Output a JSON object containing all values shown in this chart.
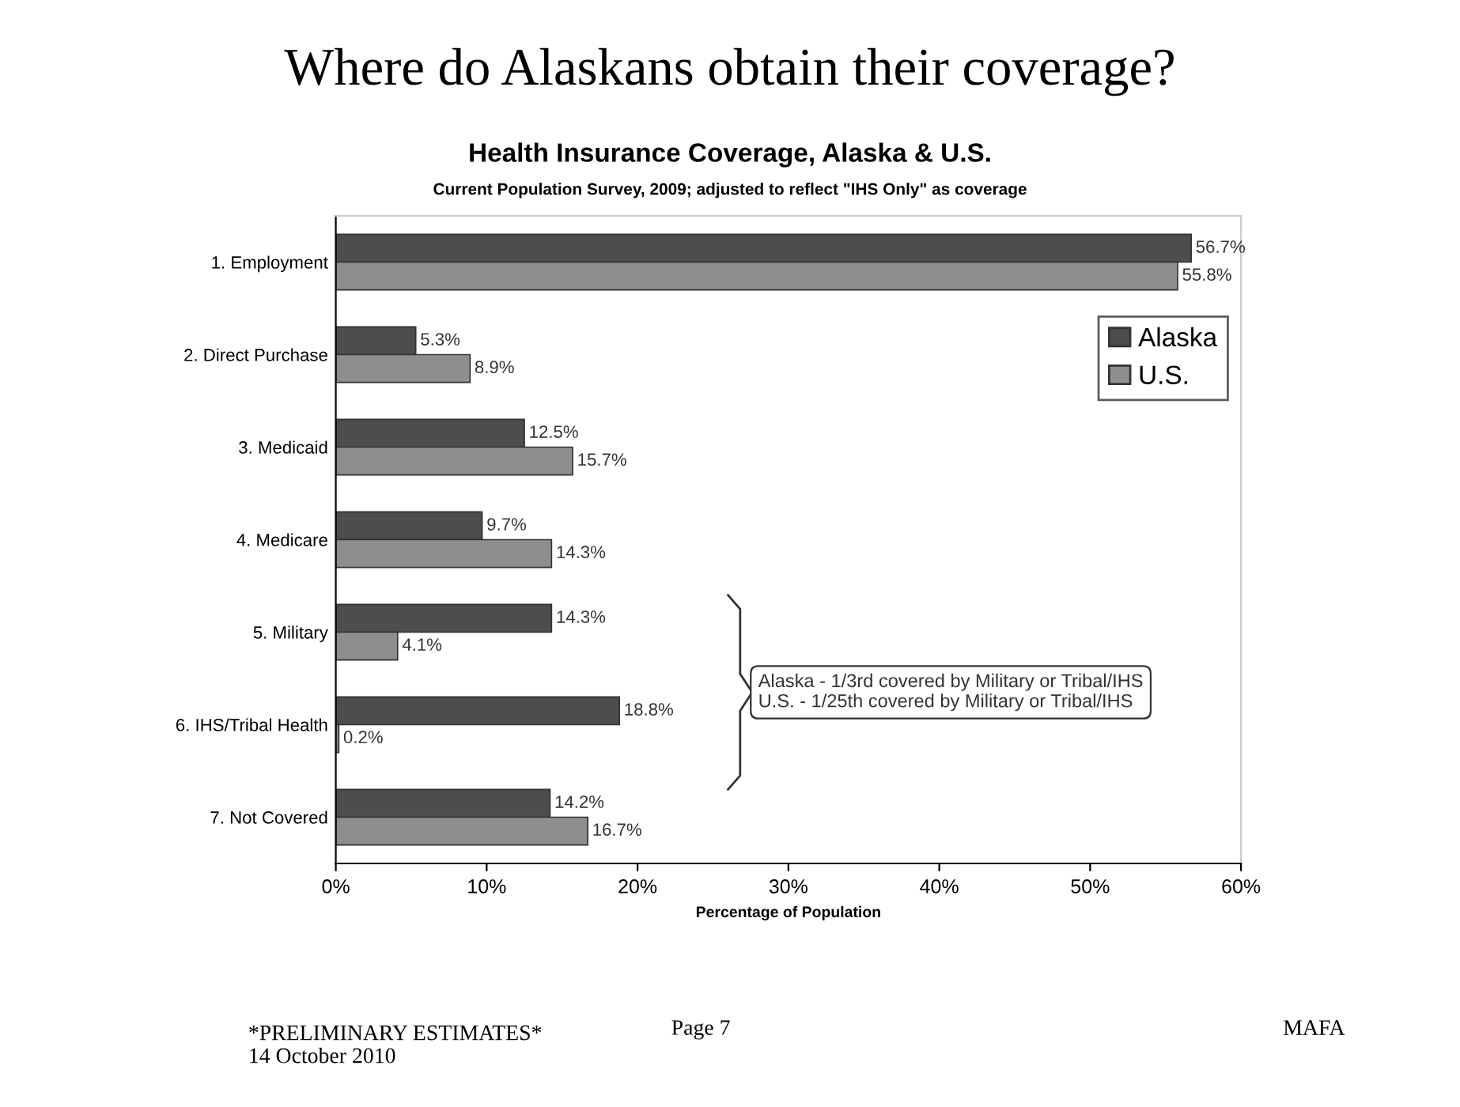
{
  "chart_data": {
    "type": "bar",
    "orientation": "horizontal",
    "title": "Where do Alaskans obtain their coverage?",
    "subtitle": "Health Insurance Coverage, Alaska & U.S.",
    "categories": [
      "1. Employment",
      "2. Direct Purchase",
      "3. Medicaid",
      "4. Medicare",
      "5. Military",
      "6. IHS/Tribal Health",
      "7. Not Covered"
    ],
    "series": [
      {
        "name": "Alaska",
        "color": "#4d4d4d",
        "values": [
          56.7,
          5.3,
          12.5,
          9.7,
          14.3,
          18.8,
          14.2
        ],
        "value_labels": [
          "56.7%",
          "5.3%",
          "12.5%",
          "9.7%",
          "14.3%",
          "18.8%",
          "14.2%"
        ]
      },
      {
        "name": "U.S.",
        "color": "#8e8e8e",
        "values": [
          55.8,
          8.9,
          15.7,
          14.3,
          4.1,
          0.2,
          16.7
        ],
        "value_labels": [
          "55.8%",
          "8.9%",
          "15.7%",
          "14.3%",
          "4.1%",
          "0.2%",
          "16.7%"
        ]
      }
    ],
    "xlabel": "Percentage of Population",
    "xlim": [
      0,
      60
    ],
    "xticks": [
      {
        "value": 0,
        "label": "0%"
      },
      {
        "value": 10,
        "label": "10%"
      },
      {
        "value": 20,
        "label": "20%"
      },
      {
        "value": 30,
        "label": "30%"
      },
      {
        "value": 40,
        "label": "40%"
      },
      {
        "value": 50,
        "label": "50%"
      },
      {
        "value": 60,
        "label": "60%"
      }
    ],
    "legend": "right",
    "grid": false,
    "annotations": [
      "Current Population Survey, 2009; adjusted to reflect \"IHS Only\" as coverage",
      "Alaska - 1/3rd covered by Military or Tribal/IHS\nU.S. - 1/25th covered by Military or Tribal/IHS",
      "*PRELIMINARY ESTIMATES*\n14 October 2010",
      "Page 7",
      "MAFA"
    ]
  }
}
